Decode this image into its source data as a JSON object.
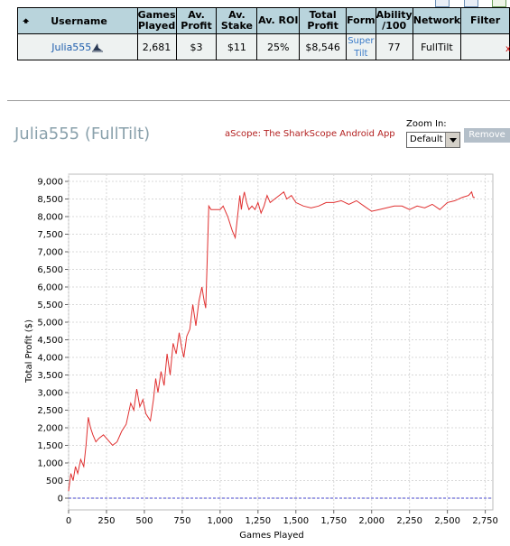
{
  "stats_table": {
    "headers": [
      "Username",
      "Games Played",
      "Av. Profit",
      "Av. Stake",
      "Av. ROI",
      "Total Profit",
      "Form",
      "Ability /100",
      "Network",
      "Filter"
    ],
    "header_html_lines": [
      [
        "Username"
      ],
      [
        "Games",
        "Played"
      ],
      [
        "Av.",
        "Profit"
      ],
      [
        "Av.",
        "Stake"
      ],
      [
        "Av. ROI"
      ],
      [
        "Total",
        "Profit"
      ],
      [
        "Form"
      ],
      [
        "Ability",
        "/100"
      ],
      [
        "Network"
      ],
      [
        "Filter"
      ]
    ],
    "row": {
      "username": "Julia555",
      "games_played": "2,681",
      "av_profit": "$3",
      "av_stake": "$11",
      "av_roi": "25%",
      "total_profit": "$8,546",
      "form_line1": "Super",
      "form_line2": "Tilt",
      "ability": "77",
      "network": "FullTilt",
      "filter": ""
    },
    "remove_mark": "x"
  },
  "graph_header": {
    "title": "Julia555 (FullTilt)",
    "app_link": "aScope: The SharkScope Android App",
    "zoom_label": "Zoom In:",
    "zoom_value": "Default",
    "remove_button": "Remove"
  },
  "colors": {
    "header_bg": "#b9d4dc",
    "row_bg": "#eef2f1",
    "line": "#e03030",
    "link": "#1f5fae",
    "title": "#8aa1ac"
  },
  "chart_data": {
    "type": "line",
    "xlabel": "Games Played",
    "ylabel": "Total Profit ($)",
    "xlim": [
      0,
      2800
    ],
    "ylim": [
      -400,
      9200
    ],
    "xticks": [
      0,
      250,
      500,
      750,
      1000,
      1250,
      1500,
      1750,
      2000,
      2250,
      2500,
      2750
    ],
    "xtick_labels": [
      "0",
      "250",
      "500",
      "750",
      "1,000",
      "1,250",
      "1,500",
      "1,750",
      "2,000",
      "2,250",
      "2,500",
      "2,750"
    ],
    "yticks": [
      0,
      500,
      1000,
      1500,
      2000,
      2500,
      3000,
      3500,
      4000,
      4500,
      5000,
      5500,
      6000,
      6500,
      7000,
      7500,
      8000,
      8500,
      9000
    ],
    "ytick_labels": [
      "0",
      "500",
      "1,000",
      "1,500",
      "2,000",
      "2,500",
      "3,000",
      "3,500",
      "4,000",
      "4,500",
      "5,000",
      "5,500",
      "6,000",
      "6,500",
      "7,000",
      "7,500",
      "8,000",
      "8,500",
      "9,000"
    ],
    "grid": true,
    "zero_line": true,
    "series": [
      {
        "x": [
          0,
          15,
          30,
          45,
          60,
          80,
          100,
          115,
          130,
          145,
          160,
          180,
          200,
          230,
          260,
          290,
          320,
          350,
          380,
          410,
          430,
          450,
          470,
          490,
          510,
          540,
          560,
          575,
          590,
          610,
          630,
          650,
          670,
          690,
          710,
          730,
          745,
          760,
          780,
          800,
          820,
          840,
          860,
          880,
          895,
          905,
          915,
          925,
          940,
          960,
          980,
          1000,
          1020,
          1050,
          1080,
          1100,
          1110,
          1120,
          1130,
          1140,
          1150,
          1160,
          1175,
          1190,
          1210,
          1230,
          1250,
          1270,
          1290,
          1310,
          1330,
          1360,
          1390,
          1420,
          1440,
          1470,
          1500,
          1550,
          1600,
          1650,
          1700,
          1750,
          1800,
          1850,
          1900,
          1950,
          2000,
          2050,
          2100,
          2150,
          2200,
          2250,
          2300,
          2350,
          2400,
          2450,
          2500,
          2550,
          2600,
          2640,
          2660,
          2670,
          2681
        ],
        "y": [
          200,
          700,
          500,
          900,
          700,
          1100,
          900,
          1500,
          2300,
          2000,
          1800,
          1600,
          1700,
          1800,
          1650,
          1500,
          1600,
          1900,
          2100,
          2700,
          2500,
          3100,
          2600,
          2800,
          2400,
          2200,
          2800,
          3400,
          3000,
          3600,
          3200,
          4100,
          3500,
          4400,
          4100,
          4700,
          4300,
          4000,
          4600,
          4800,
          5500,
          4900,
          5600,
          6000,
          5600,
          5400,
          6800,
          8300,
          8200,
          8200,
          8200,
          8200,
          8300,
          8000,
          7600,
          7400,
          7800,
          8200,
          8600,
          8200,
          8500,
          8700,
          8400,
          8200,
          8300,
          8200,
          8400,
          8100,
          8300,
          8600,
          8400,
          8500,
          8600,
          8700,
          8500,
          8600,
          8400,
          8300,
          8250,
          8300,
          8400,
          8400,
          8450,
          8350,
          8450,
          8300,
          8150,
          8200,
          8250,
          8300,
          8300,
          8200,
          8300,
          8250,
          8350,
          8200,
          8400,
          8450,
          8550,
          8600,
          8700,
          8550,
          8546
        ]
      }
    ]
  }
}
